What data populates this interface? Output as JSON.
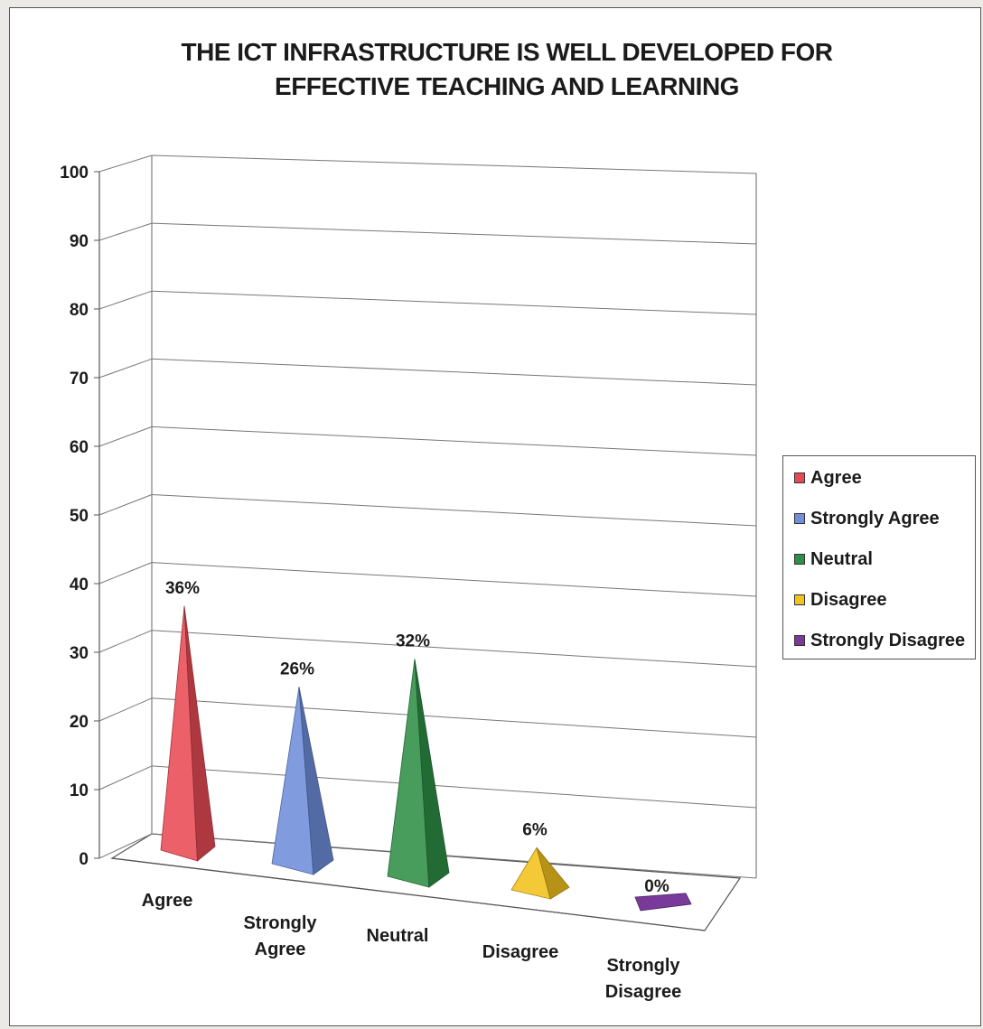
{
  "chart_data": {
    "type": "bar",
    "title": "THE ICT INFRASTRUCTURE IS WELL DEVELOPED FOR EFFECTIVE TEACHING AND LEARNING",
    "title_lines": [
      "THE ICT INFRASTRUCTURE IS WELL DEVELOPED FOR",
      "EFFECTIVE TEACHING AND LEARNING"
    ],
    "categories": [
      "Agree",
      "Strongly Agree",
      "Neutral",
      "Disagree",
      "Strongly Disagree"
    ],
    "category_lines": [
      [
        "Agree"
      ],
      [
        "Strongly",
        "Agree"
      ],
      [
        "Neutral"
      ],
      [
        "Disagree"
      ],
      [
        "Strongly",
        "Disagree"
      ]
    ],
    "values": [
      36,
      26,
      32,
      6,
      0
    ],
    "data_labels": [
      "36%",
      "26%",
      "32%",
      "6%",
      "0%"
    ],
    "colors": [
      "#e84a55",
      "#6f8fdb",
      "#2f8f46",
      "#f2c21d",
      "#7a3a9a"
    ],
    "ylim": [
      0,
      100
    ],
    "yticks": [
      0,
      10,
      20,
      30,
      40,
      50,
      60,
      70,
      80,
      90,
      100
    ],
    "xlabel": "",
    "ylabel": "",
    "grid": true,
    "style": "3d-pyramid",
    "legend": {
      "position": "right",
      "items": [
        "Agree",
        "Strongly Agree",
        "Neutral",
        "Disagree",
        "Strongly Disagree"
      ]
    }
  }
}
